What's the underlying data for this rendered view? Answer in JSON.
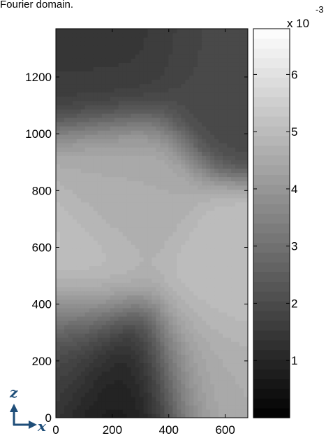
{
  "page": {
    "caption": "Fourier domain."
  },
  "chart_data": {
    "type": "heatmap",
    "style": "filled-contour",
    "colormap": "gray",
    "xlim": [
      0,
      680
    ],
    "ylim": [
      0,
      1370
    ],
    "x_ticks": [
      0,
      200,
      400,
      600
    ],
    "y_ticks": [
      0,
      200,
      400,
      600,
      800,
      1000,
      1200
    ],
    "grid": false,
    "colorbar": {
      "placement": "right",
      "range": [
        0.0,
        6.8
      ],
      "ticks": [
        1,
        2,
        3,
        4,
        5,
        6
      ],
      "exponent_base": "x 10",
      "exponent_power": "-3"
    },
    "field_features": [
      {
        "kind": "minimum",
        "x": 170,
        "z": 1290,
        "value": 1.5
      },
      {
        "kind": "minimum",
        "x": 640,
        "z": 1200,
        "value": 1.9
      },
      {
        "kind": "minimum",
        "x": 230,
        "z": 70,
        "value": 0.6
      },
      {
        "kind": "minimum",
        "x": 0,
        "z": 220,
        "value": 1.9
      },
      {
        "kind": "maximum",
        "x": 20,
        "z": 520,
        "value": 5.3
      },
      {
        "kind": "maximum",
        "x": 660,
        "z": 480,
        "value": 5.1
      },
      {
        "kind": "maximum",
        "x": 560,
        "z": 150,
        "value": 4.6
      },
      {
        "kind": "maximum",
        "x": 220,
        "z": 790,
        "value": 4.6
      }
    ],
    "corner_axes": {
      "vertical_label": "z",
      "horizontal_label": "x",
      "color": "#1f4e79"
    }
  }
}
